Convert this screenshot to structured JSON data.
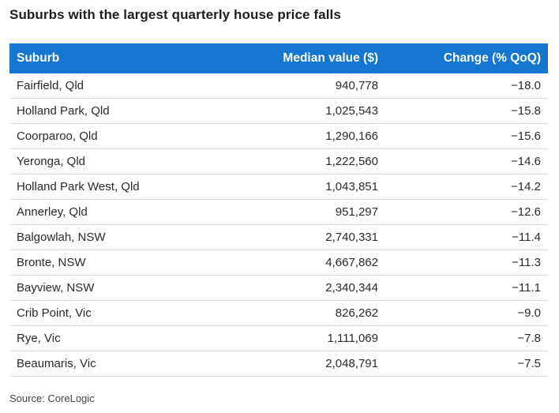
{
  "title": "Suburbs with the largest quarterly house price falls",
  "table": {
    "headers": [
      "Suburb",
      "Median value ($)",
      "Change (% QoQ)"
    ],
    "rows": [
      [
        "Fairfield, Qld",
        "940,778",
        "−18.0"
      ],
      [
        "Holland Park, Qld",
        "1,025,543",
        "−15.8"
      ],
      [
        "Coorparoo, Qld",
        "1,290,166",
        "−15.6"
      ],
      [
        "Yeronga, Qld",
        "1,222,560",
        "−14.6"
      ],
      [
        "Holland Park West, Qld",
        "1,043,851",
        "−14.2"
      ],
      [
        "Annerley, Qld",
        "951,297",
        "−12.6"
      ],
      [
        "Balgowlah, NSW",
        "2,740,331",
        "−11.4"
      ],
      [
        "Bronte, NSW",
        "4,667,862",
        "−11.3"
      ],
      [
        "Bayview, NSW",
        "2,340,344",
        "−11.1"
      ],
      [
        "Crib Point, Vic",
        "826,262",
        "−9.0"
      ],
      [
        "Rye, Vic",
        "1,111,069",
        "−7.8"
      ],
      [
        "Beaumaris, Vic",
        "2,048,791",
        "−7.5"
      ]
    ]
  },
  "source": "Source: CoreLogic",
  "colors": {
    "header_bg": "#1476d1",
    "header_text": "#ffffff"
  }
}
